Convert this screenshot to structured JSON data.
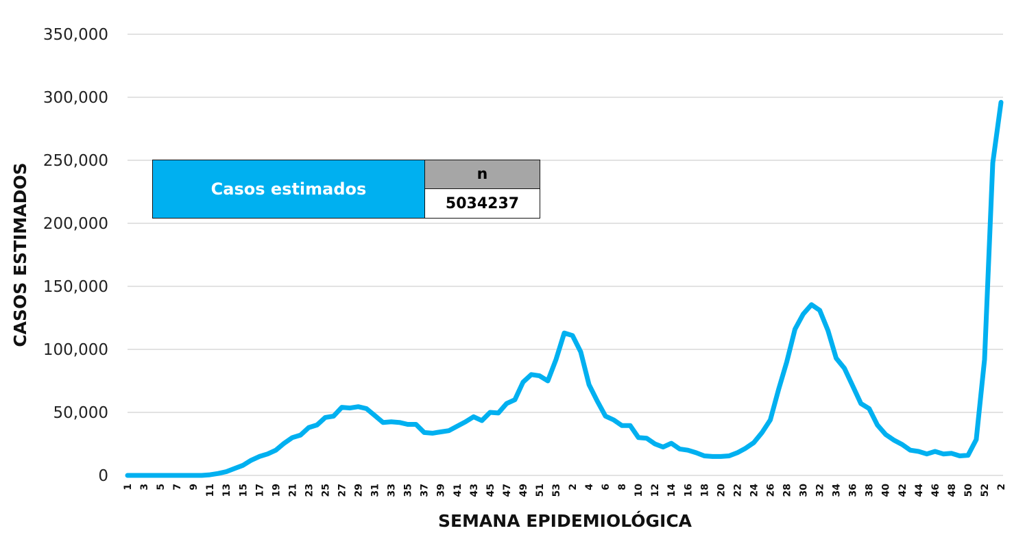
{
  "summary": {
    "label": "Casos estimados",
    "header": "n",
    "value": "5034237"
  },
  "chart_data": {
    "type": "line",
    "title": "",
    "xlabel": "SEMANA EPIDEMIOLÓGICA",
    "ylabel": "CASOS ESTIMADOS",
    "ylim": [
      0,
      350000
    ],
    "yticks": [
      0,
      50000,
      100000,
      150000,
      200000,
      250000,
      300000,
      350000
    ],
    "ytick_labels": [
      "0",
      "50,000",
      "100,000",
      "150,000",
      "200,000",
      "250,000",
      "300,000",
      "350,000"
    ],
    "grid": true,
    "line_color": "#00b0f0",
    "x": [
      "1",
      "2",
      "3",
      "4",
      "5",
      "6",
      "7",
      "8",
      "9",
      "10",
      "11",
      "12",
      "13",
      "14",
      "15",
      "16",
      "17",
      "18",
      "19",
      "20",
      "21",
      "22",
      "23",
      "24",
      "25",
      "26",
      "27",
      "28",
      "29",
      "30",
      "31",
      "32",
      "33",
      "34",
      "35",
      "36",
      "37",
      "38",
      "39",
      "40",
      "41",
      "42",
      "43",
      "44",
      "45",
      "46",
      "47",
      "48",
      "49",
      "50",
      "51",
      "52",
      "53",
      "1",
      "2",
      "3",
      "4",
      "5",
      "6",
      "7",
      "8",
      "9",
      "10",
      "11",
      "12",
      "13",
      "14",
      "15",
      "16",
      "17",
      "18",
      "19",
      "20",
      "21",
      "22",
      "23",
      "24",
      "25",
      "26",
      "27",
      "28",
      "29",
      "30",
      "31",
      "32",
      "33",
      "34",
      "35",
      "36",
      "37",
      "38",
      "39",
      "40",
      "41",
      "42",
      "43",
      "44",
      "45",
      "46",
      "47",
      "48",
      "49",
      "50",
      "51",
      "52",
      "1",
      "2"
    ],
    "series": [
      {
        "values": [
          0,
          0,
          0,
          0,
          0,
          0,
          0,
          0,
          0,
          0,
          500,
          1500,
          3000,
          5500,
          8000,
          12000,
          15000,
          17000,
          20000,
          25500,
          30000,
          32000,
          38000,
          40000,
          46000,
          47000,
          54000,
          53500,
          54500,
          53000,
          47500,
          42000,
          42500,
          42000,
          40500,
          40500,
          34000,
          33500,
          34500,
          35500,
          39000,
          42500,
          46500,
          43500,
          50000,
          49500,
          57000,
          60000,
          74000,
          80000,
          79000,
          75000,
          92000,
          113000,
          111000,
          98000,
          72000,
          59000,
          47000,
          44000,
          39500,
          39500,
          30000,
          29500,
          25000,
          22500,
          25500,
          21000,
          20000,
          18000,
          15500,
          15000,
          15000,
          15500,
          18000,
          21500,
          26000,
          34000,
          44000,
          68000,
          90000,
          116000,
          128000,
          135500,
          131000,
          115000,
          93000,
          85000,
          71000,
          57000,
          53000,
          40000,
          32500,
          28000,
          24500,
          20000,
          19000,
          17000,
          19000,
          17000,
          17500,
          15500,
          16000,
          28500,
          92000,
          248000,
          296000
        ]
      }
    ]
  }
}
